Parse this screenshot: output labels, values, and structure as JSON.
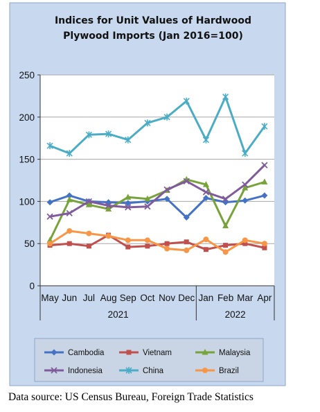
{
  "chart_data": {
    "type": "line",
    "title_lines": [
      "Indices for Unit Values of Hardwood",
      "Plywood Imports (Jan 2016=100)"
    ],
    "xlabel": "",
    "ylabel": "",
    "categories": [
      "May",
      "Jun",
      "Jul",
      "Aug",
      "Sep",
      "Oct",
      "Nov",
      "Dec",
      "Jan",
      "Feb",
      "Mar",
      "Apr"
    ],
    "year_groups": [
      {
        "label": "2021",
        "start": 0,
        "end": 7
      },
      {
        "label": "2022",
        "start": 8,
        "end": 11
      }
    ],
    "ylim": [
      0,
      250
    ],
    "yticks": [
      0,
      50,
      100,
      150,
      200,
      250
    ],
    "grid": true,
    "legend_position": "bottom",
    "series": [
      {
        "name": "Cambodia",
        "color": "#4472C4",
        "marker": "diamond",
        "values": [
          99,
          107,
          100,
          99,
          98,
          100,
          103,
          81,
          104,
          99,
          101,
          107
        ]
      },
      {
        "name": "Vietnam",
        "color": "#C0504D",
        "marker": "square",
        "values": [
          48,
          50,
          47,
          60,
          46,
          47,
          50,
          52,
          43,
          48,
          50,
          45
        ]
      },
      {
        "name": "Malaysia",
        "color": "#77A33A",
        "marker": "triangle",
        "values": [
          54,
          102,
          96,
          91,
          105,
          103,
          113,
          126,
          120,
          71,
          116,
          123
        ]
      },
      {
        "name": "Indonesia",
        "color": "#7F5B9C",
        "marker": "x",
        "values": [
          82,
          86,
          100,
          95,
          93,
          94,
          114,
          124,
          111,
          103,
          120,
          143
        ]
      },
      {
        "name": "China",
        "color": "#4BACC6",
        "marker": "star",
        "values": [
          166,
          157,
          179,
          180,
          173,
          193,
          200,
          219,
          173,
          224,
          157,
          189
        ]
      },
      {
        "name": "Brazil",
        "color": "#F79646",
        "marker": "circle",
        "values": [
          50,
          65,
          62,
          59,
          54,
          54,
          44,
          42,
          55,
          40,
          54,
          50
        ]
      }
    ]
  },
  "source_note": "Data source: US Census Bureau, Foreign Trade Statistics",
  "colors": {
    "frame_background": "#C7D8EF",
    "plot_background": "#FFFFFF",
    "gridline": "#A6A6A6",
    "legend_background": "#C9D4E4"
  }
}
